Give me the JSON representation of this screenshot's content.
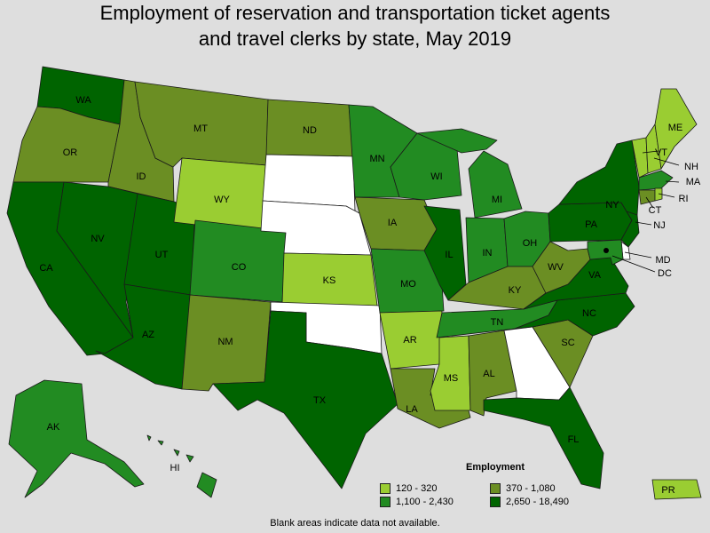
{
  "title_line1": "Employment of reservation and transportation ticket agents",
  "title_line2": "and travel clerks by state, May 2019",
  "legend": {
    "title": "Employment",
    "items": [
      {
        "label": "120 - 320",
        "color": "#9acd32"
      },
      {
        "label": "370 - 1,080",
        "color": "#6b8e23"
      },
      {
        "label": "1,100 - 2,430",
        "color": "#228b22"
      },
      {
        "label": "2,650 - 18,490",
        "color": "#006400"
      }
    ]
  },
  "footnote": "Blank areas indicate data not available.",
  "states": {
    "WA": "WA",
    "OR": "OR",
    "CA": "CA",
    "ID": "ID",
    "NV": "NV",
    "UT": "UT",
    "AZ": "AZ",
    "MT": "MT",
    "WY": "WY",
    "CO": "CO",
    "NM": "NM",
    "ND": "ND",
    "SD": "",
    "NE": "",
    "KS": "KS",
    "OK": "",
    "TX": "TX",
    "MN": "MN",
    "IA": "IA",
    "MO": "MO",
    "AR": "AR",
    "LA": "LA",
    "WI": "WI",
    "IL": "IL",
    "MI": "MI",
    "IN": "IN",
    "OH": "OH",
    "KY": "KY",
    "TN": "TN",
    "MS": "MS",
    "AL": "AL",
    "GA": "",
    "FL": "FL",
    "SC": "SC",
    "NC": "NC",
    "VA": "VA",
    "WV": "WV",
    "PA": "PA",
    "NY": "NY",
    "VT": "VT",
    "NH": "NH",
    "ME": "ME",
    "MA": "MA",
    "RI": "RI",
    "CT": "CT",
    "NJ": "NJ",
    "DE": "",
    "MD": "MD",
    "DC": "DC",
    "AK": "AK",
    "HI": "HI",
    "PR": "PR"
  }
}
